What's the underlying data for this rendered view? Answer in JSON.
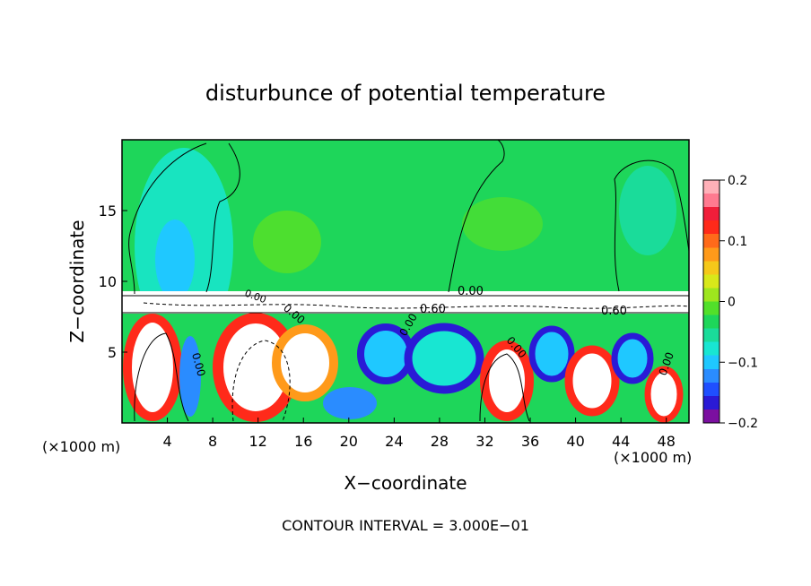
{
  "chart_data": {
    "type": "heatmap",
    "title": "disturbunce of potential temperature",
    "xlabel": "X−coordinate",
    "ylabel": "Z−coordinate",
    "x_unit_left": "(×1000 m)",
    "x_unit_right": "(×1000 m)",
    "xlim": [
      0,
      50
    ],
    "ylim": [
      0,
      20
    ],
    "x_ticks": [
      "4",
      "8",
      "12",
      "16",
      "20",
      "24",
      "28",
      "32",
      "36",
      "40",
      "44",
      "48"
    ],
    "y_ticks": [
      "5",
      "10",
      "15"
    ],
    "colorbar": {
      "range": [
        -0.2,
        0.2
      ],
      "tick_labels": [
        "0.2",
        "0.1",
        "0",
        "−0.1",
        "−0.2"
      ],
      "colors": [
        "#7b0fa0",
        "#2a1ad6",
        "#1f4fff",
        "#2a8cff",
        "#1fc8ff",
        "#18e6d2",
        "#1adc9a",
        "#1ed65a",
        "#52e02a",
        "#9ee61e",
        "#d8e81a",
        "#f5c81a",
        "#ff9a1a",
        "#ff6a1a",
        "#ff2a1a",
        "#f01e3a",
        "#ff7a90",
        "#ffb0b8"
      ]
    },
    "contour_labels": [
      "0.00",
      "0.60",
      "0.60",
      "0.00",
      "0.00",
      "0.00",
      "0.00",
      "0.00",
      "0.00"
    ],
    "footer": "CONTOUR INTERVAL = 3.000E−01"
  }
}
